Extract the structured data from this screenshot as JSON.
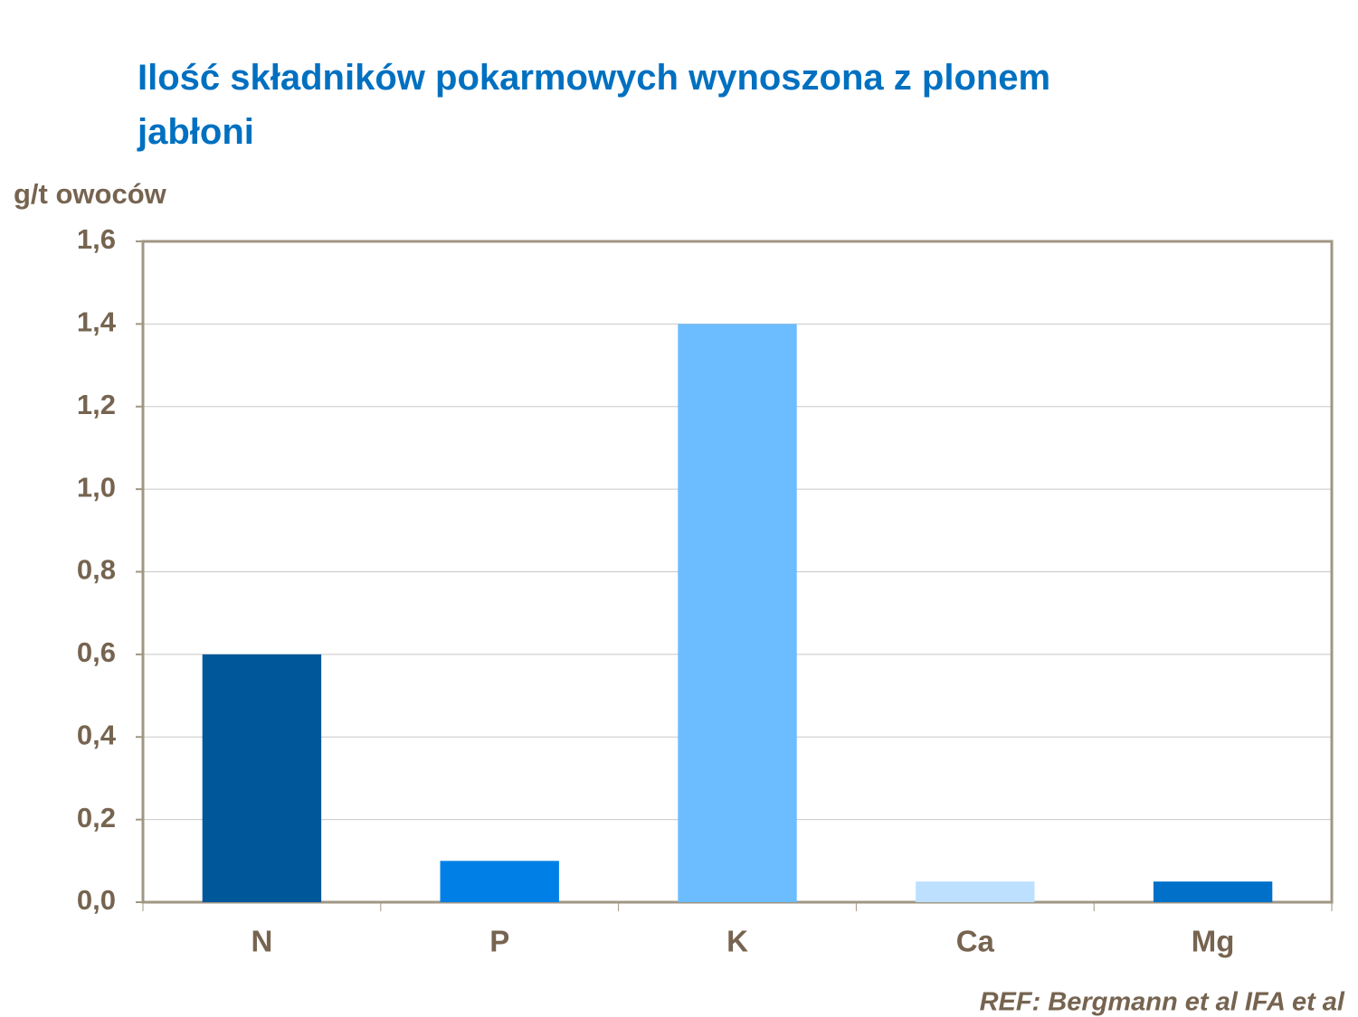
{
  "chart_data": {
    "type": "bar",
    "title": "Ilość składników pokarmowych wynoszona z plonem jabłoni",
    "y_axis_label": "g/t owoców",
    "source": "REF: Bergmann et al IFA et al",
    "categories": [
      "N",
      "P",
      "K",
      "Ca",
      "Mg"
    ],
    "values": [
      0.6,
      0.1,
      1.4,
      0.05,
      0.05
    ],
    "colors": [
      "#00579a",
      "#0080e6",
      "#6bbdff",
      "#bde0ff",
      "#0070c8"
    ],
    "ylim": [
      0,
      1.6
    ],
    "yticks": [
      {
        "value": 0,
        "label": "0,0"
      },
      {
        "value": 0.2,
        "label": "0,2"
      },
      {
        "value": 0.4,
        "label": "0,4"
      },
      {
        "value": 0.6,
        "label": "0,6"
      },
      {
        "value": 0.8,
        "label": "0,8"
      },
      {
        "value": 1.0,
        "label": "1,0"
      },
      {
        "value": 1.2,
        "label": "1,2"
      },
      {
        "value": 1.4,
        "label": "1,4"
      },
      {
        "value": 1.6,
        "label": "1,6"
      }
    ],
    "grid": true
  }
}
